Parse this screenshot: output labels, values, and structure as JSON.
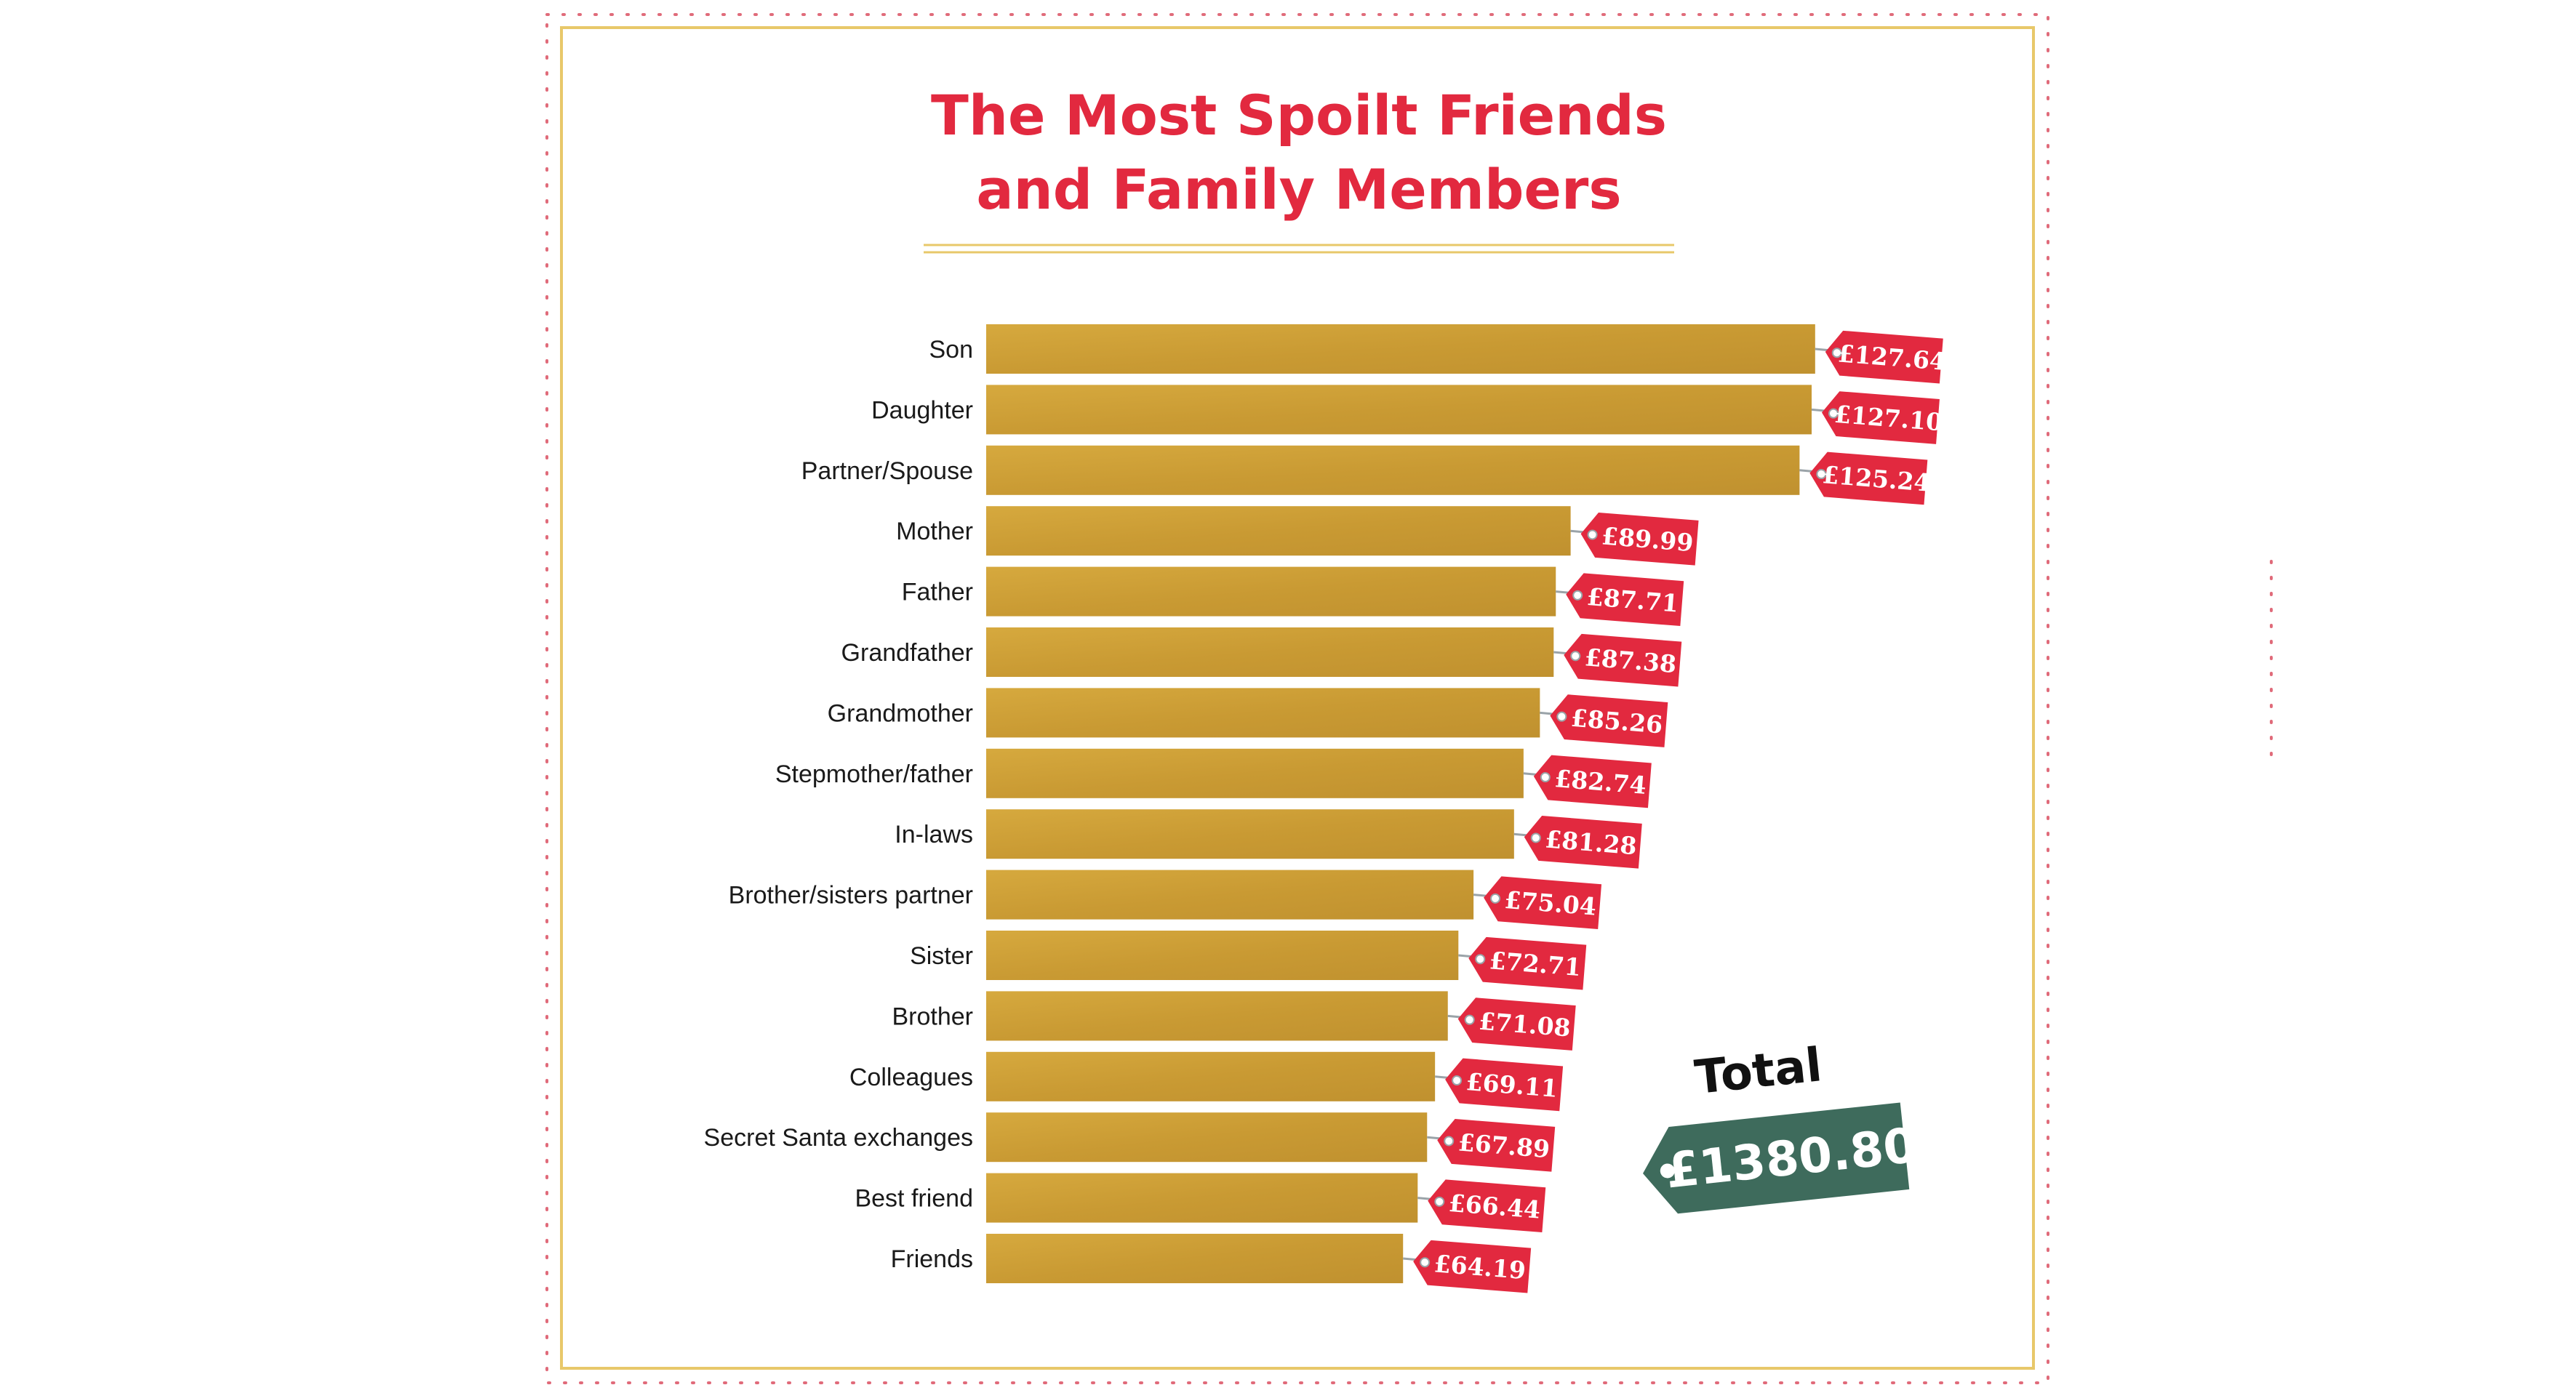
{
  "chart_data": {
    "type": "bar",
    "orientation": "horizontal",
    "title": "The Most Spoilt Friends and Family Members",
    "title_lines": [
      "The Most Spoilt Friends",
      "and Family Members"
    ],
    "categories": [
      "Son",
      "Daughter",
      "Partner/Spouse",
      "Mother",
      "Father",
      "Grandfather",
      "Grandmother",
      "Stepmother/father",
      "In-laws",
      "Brother/sisters partner",
      "Sister",
      "Brother",
      "Colleagues",
      "Secret Santa exchanges",
      "Best friend",
      "Friends"
    ],
    "values": [
      127.64,
      127.1,
      125.24,
      89.99,
      87.71,
      87.38,
      85.26,
      82.74,
      81.28,
      75.04,
      72.71,
      71.08,
      69.11,
      67.89,
      66.44,
      64.19
    ],
    "value_labels": [
      "£127.64",
      "£127.10",
      "£125.24",
      "£89.99",
      "£87.71",
      "£87.38",
      "£85.26",
      "£82.74",
      "£81.28",
      "£75.04",
      "£72.71",
      "£71.08",
      "£69.11",
      "£67.89",
      "£66.44",
      "£64.19"
    ],
    "total_label": "Total",
    "total_value": "£1380.80",
    "xlabel": "",
    "ylabel": "",
    "grid": false,
    "legend": "none",
    "colors": {
      "bar": "#c99a33",
      "bar_light": "#d4a73d",
      "tag": "#e2293f",
      "title": "#e2293f",
      "total_tag": "#3e6b5c",
      "frame": "#e8c86a",
      "dots": "#e06b7a"
    }
  }
}
